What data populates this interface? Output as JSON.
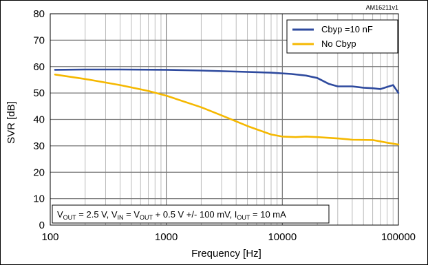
{
  "chart_data": {
    "type": "line",
    "xlabel": "Frequency [Hz]",
    "ylabel": "SVR [dB]",
    "x_scale": "log",
    "xlim": [
      100,
      100000
    ],
    "ylim": [
      0,
      80
    ],
    "x_ticks": [
      "100",
      "1000",
      "10000",
      "100000"
    ],
    "y_ticks": [
      "0",
      "10",
      "20",
      "30",
      "40",
      "50",
      "60",
      "70",
      "80"
    ],
    "grid": true,
    "legend_position": "top-right",
    "watermark": "AM16211v1",
    "annotation": {
      "v": "V",
      "out_sub": "OUT",
      "text_part1": " = 2.5 V, V",
      "in_sub": "IN",
      "text_part2": " = V",
      "out_sub_2": "OUT",
      "text_part3": " + 0.5 V +/- 100 mV, I",
      "out_sub_3": "OUT",
      "text_part4": " = 10 mA"
    },
    "series": [
      {
        "name": "Cbyp =10 nF",
        "color": "#2e4a9e",
        "x": [
          110,
          200,
          400,
          1000,
          2000,
          4000,
          8000,
          12000,
          16000,
          20000,
          25000,
          30000,
          40000,
          50000,
          60000,
          70000,
          80000,
          90000,
          100000
        ],
        "y": [
          58.8,
          58.9,
          58.9,
          58.8,
          58.5,
          58.1,
          57.7,
          57.2,
          56.6,
          55.7,
          53.5,
          52.5,
          52.5,
          52.0,
          51.8,
          51.5,
          52.3,
          53.0,
          50.0
        ]
      },
      {
        "name": "No Cbyp",
        "color": "#f5b800",
        "x": [
          110,
          200,
          400,
          700,
          1000,
          2000,
          3000,
          5000,
          8000,
          10000,
          13000,
          16000,
          20000,
          30000,
          40000,
          60000,
          80000,
          100000
        ],
        "y": [
          57.0,
          55.3,
          53.0,
          50.8,
          49.0,
          44.6,
          41.5,
          37.5,
          34.3,
          33.5,
          33.3,
          33.5,
          33.3,
          32.8,
          32.3,
          32.2,
          31.2,
          30.5
        ]
      }
    ]
  }
}
